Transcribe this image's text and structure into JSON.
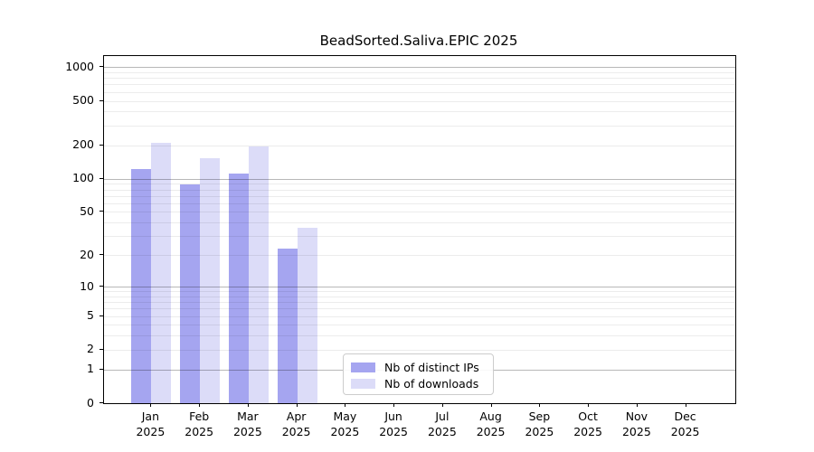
{
  "chart_data": {
    "type": "bar",
    "title": "BeadSorted.Saliva.EPIC 2025",
    "categories": [
      "Jan 2025",
      "Feb 2025",
      "Mar 2025",
      "Apr 2025",
      "May 2025",
      "Jun 2025",
      "Jul 2025",
      "Aug 2025",
      "Sep 2025",
      "Oct 2025",
      "Nov 2025",
      "Dec 2025"
    ],
    "series": [
      {
        "name": "Nb of distinct IPs",
        "color": "#a5a5f0",
        "values": [
          123,
          88,
          112,
          23,
          0,
          0,
          0,
          0,
          0,
          0,
          0,
          0
        ]
      },
      {
        "name": "Nb of downloads",
        "color": "#dcdcf8",
        "values": [
          212,
          154,
          196,
          36,
          0,
          0,
          0,
          0,
          0,
          0,
          0,
          0
        ]
      }
    ],
    "xlabel": "",
    "ylabel": "",
    "yscale": "log1p",
    "y_ticks": [
      0,
      1,
      2,
      5,
      10,
      20,
      50,
      100,
      200,
      500,
      1000
    ],
    "ylim": [
      0,
      1255
    ],
    "grid": "horizontal log major+minor",
    "legend_position": "inside lower-center"
  },
  "legend": {
    "items": [
      {
        "label": "Nb of distinct IPs",
        "color": "#a5a5f0"
      },
      {
        "label": "Nb of downloads",
        "color": "#dcdcf8"
      }
    ]
  },
  "colors": {
    "background": "#ffffff",
    "spine": "#000000",
    "major_grid": "#b6b6b6",
    "minor_grid": "#ebebeb",
    "bar_distinct_ips": "#a5a5f0",
    "bar_downloads": "#dcdcf8"
  }
}
